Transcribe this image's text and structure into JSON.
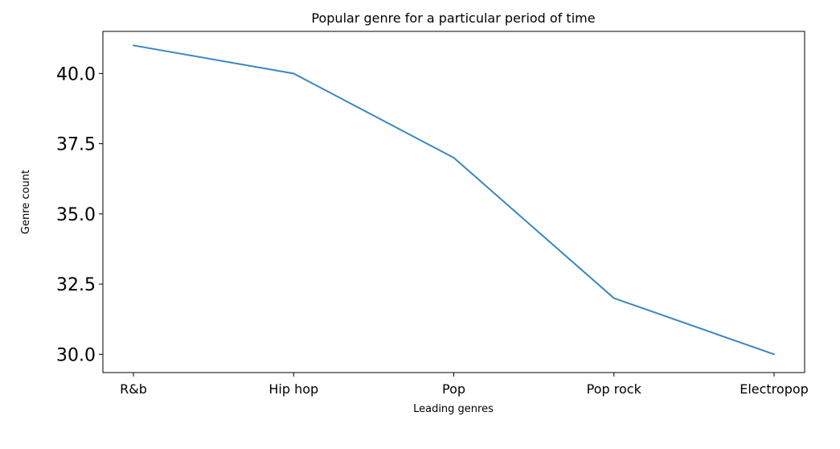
{
  "chart_data": {
    "type": "line",
    "title": "Popular genre for a particular period of time",
    "xlabel": "Leading genres",
    "ylabel": "Genre count",
    "categories": [
      "R&b",
      "Hip hop",
      "Pop",
      "Pop rock",
      "Electropop"
    ],
    "series": [
      {
        "values": [
          41,
          40,
          37,
          32,
          30
        ],
        "color": "#3a87c0"
      }
    ],
    "ylim": [
      29.35,
      41.5
    ],
    "yticks": [
      30.0,
      32.5,
      35.0,
      37.5,
      40.0
    ],
    "ytick_labels": [
      "30.0",
      "32.5",
      "35.0",
      "37.5",
      "40.0"
    ],
    "grid": false,
    "legend": "none"
  }
}
